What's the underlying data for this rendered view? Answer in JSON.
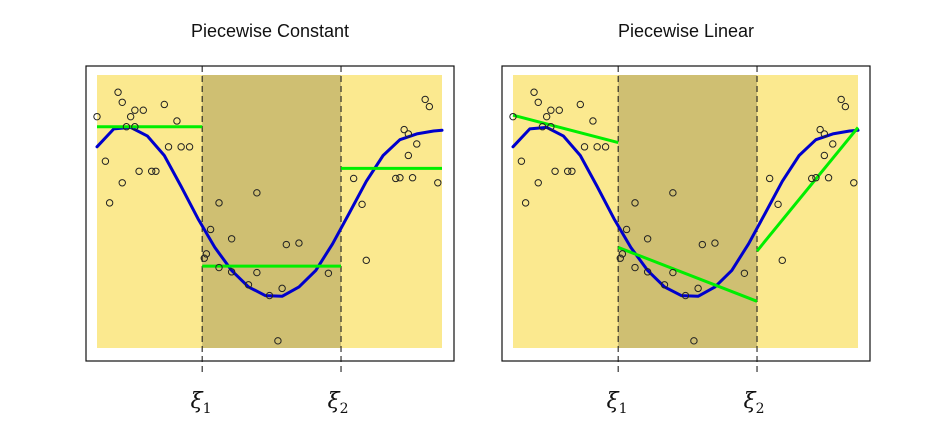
{
  "chart_data": [
    {
      "type": "scatter",
      "title": "Piecewise Constant",
      "knots": [
        {
          "symbol": "ξ",
          "subscript": "1",
          "x": 0.33
        },
        {
          "symbol": "ξ",
          "subscript": "2",
          "x": 0.66
        }
      ],
      "xlim": [
        0.08,
        0.9
      ],
      "ylim": [
        -1.6,
        2.2
      ],
      "colors": {
        "background_light": "#fbe98f",
        "background_dark": "#cfbf72",
        "true_curve": "#0000cc",
        "fit": "#00ee00",
        "points": "#222222",
        "knot_line": "#222222"
      },
      "points": [
        {
          "x": 0.08,
          "y": 1.62
        },
        {
          "x": 0.1,
          "y": 1.0
        },
        {
          "x": 0.11,
          "y": 0.42
        },
        {
          "x": 0.13,
          "y": 1.96
        },
        {
          "x": 0.14,
          "y": 1.82
        },
        {
          "x": 0.14,
          "y": 0.7
        },
        {
          "x": 0.15,
          "y": 1.48
        },
        {
          "x": 0.16,
          "y": 1.62
        },
        {
          "x": 0.17,
          "y": 1.71
        },
        {
          "x": 0.17,
          "y": 1.48
        },
        {
          "x": 0.18,
          "y": 0.86
        },
        {
          "x": 0.19,
          "y": 1.71
        },
        {
          "x": 0.21,
          "y": 0.86
        },
        {
          "x": 0.22,
          "y": 0.86
        },
        {
          "x": 0.24,
          "y": 1.79
        },
        {
          "x": 0.25,
          "y": 1.2
        },
        {
          "x": 0.27,
          "y": 1.56
        },
        {
          "x": 0.28,
          "y": 1.2
        },
        {
          "x": 0.3,
          "y": 1.2
        },
        {
          "x": 0.335,
          "y": -0.35
        },
        {
          "x": 0.34,
          "y": -0.29
        },
        {
          "x": 0.35,
          "y": 0.05
        },
        {
          "x": 0.37,
          "y": 0.42
        },
        {
          "x": 0.37,
          "y": -0.48
        },
        {
          "x": 0.4,
          "y": -0.08
        },
        {
          "x": 0.4,
          "y": -0.54
        },
        {
          "x": 0.44,
          "y": -0.72
        },
        {
          "x": 0.46,
          "y": 0.56
        },
        {
          "x": 0.46,
          "y": -0.55
        },
        {
          "x": 0.49,
          "y": -0.87
        },
        {
          "x": 0.51,
          "y": -1.5
        },
        {
          "x": 0.52,
          "y": -0.77
        },
        {
          "x": 0.53,
          "y": -0.16
        },
        {
          "x": 0.56,
          "y": -0.14
        },
        {
          "x": 0.63,
          "y": -0.56
        },
        {
          "x": 0.69,
          "y": 0.76
        },
        {
          "x": 0.71,
          "y": 0.4
        },
        {
          "x": 0.72,
          "y": -0.38
        },
        {
          "x": 0.79,
          "y": 0.76
        },
        {
          "x": 0.8,
          "y": 0.77
        },
        {
          "x": 0.81,
          "y": 1.44
        },
        {
          "x": 0.82,
          "y": 1.08
        },
        {
          "x": 0.82,
          "y": 1.38
        },
        {
          "x": 0.83,
          "y": 0.77
        },
        {
          "x": 0.84,
          "y": 1.24
        },
        {
          "x": 0.86,
          "y": 1.86
        },
        {
          "x": 0.87,
          "y": 1.76
        },
        {
          "x": 0.89,
          "y": 0.7
        }
      ],
      "true_curve": [
        {
          "x": 0.08,
          "y": 1.2
        },
        {
          "x": 0.12,
          "y": 1.45
        },
        {
          "x": 0.16,
          "y": 1.47
        },
        {
          "x": 0.2,
          "y": 1.35
        },
        {
          "x": 0.24,
          "y": 1.08
        },
        {
          "x": 0.28,
          "y": 0.65
        },
        {
          "x": 0.32,
          "y": 0.2
        },
        {
          "x": 0.36,
          "y": -0.2
        },
        {
          "x": 0.4,
          "y": -0.52
        },
        {
          "x": 0.44,
          "y": -0.75
        },
        {
          "x": 0.48,
          "y": -0.87
        },
        {
          "x": 0.52,
          "y": -0.88
        },
        {
          "x": 0.56,
          "y": -0.75
        },
        {
          "x": 0.6,
          "y": -0.52
        },
        {
          "x": 0.64,
          "y": -0.15
        },
        {
          "x": 0.68,
          "y": 0.28
        },
        {
          "x": 0.72,
          "y": 0.72
        },
        {
          "x": 0.76,
          "y": 1.08
        },
        {
          "x": 0.8,
          "y": 1.3
        },
        {
          "x": 0.84,
          "y": 1.38
        },
        {
          "x": 0.88,
          "y": 1.42
        },
        {
          "x": 0.9,
          "y": 1.43
        }
      ],
      "fit_segments": [
        {
          "x": [
            0.08,
            0.33
          ],
          "y": [
            1.48,
            1.48
          ]
        },
        {
          "x": [
            0.33,
            0.66
          ],
          "y": [
            -0.46,
            -0.46
          ]
        },
        {
          "x": [
            0.66,
            0.9
          ],
          "y": [
            0.9,
            0.9
          ]
        }
      ]
    },
    {
      "type": "scatter",
      "title": "Piecewise Linear",
      "knots": [
        {
          "symbol": "ξ",
          "subscript": "1",
          "x": 0.33
        },
        {
          "symbol": "ξ",
          "subscript": "2",
          "x": 0.66
        }
      ],
      "xlim": [
        0.08,
        0.9
      ],
      "ylim": [
        -1.6,
        2.2
      ],
      "colors": {
        "background_light": "#fbe98f",
        "background_dark": "#cfbf72",
        "true_curve": "#0000cc",
        "fit": "#00ee00",
        "points": "#222222",
        "knot_line": "#222222"
      },
      "points": [
        {
          "x": 0.08,
          "y": 1.62
        },
        {
          "x": 0.1,
          "y": 1.0
        },
        {
          "x": 0.11,
          "y": 0.42
        },
        {
          "x": 0.13,
          "y": 1.96
        },
        {
          "x": 0.14,
          "y": 1.82
        },
        {
          "x": 0.14,
          "y": 0.7
        },
        {
          "x": 0.15,
          "y": 1.48
        },
        {
          "x": 0.16,
          "y": 1.62
        },
        {
          "x": 0.17,
          "y": 1.71
        },
        {
          "x": 0.17,
          "y": 1.48
        },
        {
          "x": 0.18,
          "y": 0.86
        },
        {
          "x": 0.19,
          "y": 1.71
        },
        {
          "x": 0.21,
          "y": 0.86
        },
        {
          "x": 0.22,
          "y": 0.86
        },
        {
          "x": 0.24,
          "y": 1.79
        },
        {
          "x": 0.25,
          "y": 1.2
        },
        {
          "x": 0.27,
          "y": 1.56
        },
        {
          "x": 0.28,
          "y": 1.2
        },
        {
          "x": 0.3,
          "y": 1.2
        },
        {
          "x": 0.335,
          "y": -0.35
        },
        {
          "x": 0.34,
          "y": -0.29
        },
        {
          "x": 0.35,
          "y": 0.05
        },
        {
          "x": 0.37,
          "y": 0.42
        },
        {
          "x": 0.37,
          "y": -0.48
        },
        {
          "x": 0.4,
          "y": -0.08
        },
        {
          "x": 0.4,
          "y": -0.54
        },
        {
          "x": 0.44,
          "y": -0.72
        },
        {
          "x": 0.46,
          "y": 0.56
        },
        {
          "x": 0.46,
          "y": -0.55
        },
        {
          "x": 0.49,
          "y": -0.87
        },
        {
          "x": 0.51,
          "y": -1.5
        },
        {
          "x": 0.52,
          "y": -0.77
        },
        {
          "x": 0.53,
          "y": -0.16
        },
        {
          "x": 0.56,
          "y": -0.14
        },
        {
          "x": 0.63,
          "y": -0.56
        },
        {
          "x": 0.69,
          "y": 0.76
        },
        {
          "x": 0.71,
          "y": 0.4
        },
        {
          "x": 0.72,
          "y": -0.38
        },
        {
          "x": 0.79,
          "y": 0.76
        },
        {
          "x": 0.8,
          "y": 0.77
        },
        {
          "x": 0.81,
          "y": 1.44
        },
        {
          "x": 0.82,
          "y": 1.08
        },
        {
          "x": 0.82,
          "y": 1.38
        },
        {
          "x": 0.83,
          "y": 0.77
        },
        {
          "x": 0.84,
          "y": 1.24
        },
        {
          "x": 0.86,
          "y": 1.86
        },
        {
          "x": 0.87,
          "y": 1.76
        },
        {
          "x": 0.89,
          "y": 0.7
        }
      ],
      "true_curve": [
        {
          "x": 0.08,
          "y": 1.2
        },
        {
          "x": 0.12,
          "y": 1.45
        },
        {
          "x": 0.16,
          "y": 1.47
        },
        {
          "x": 0.2,
          "y": 1.35
        },
        {
          "x": 0.24,
          "y": 1.08
        },
        {
          "x": 0.28,
          "y": 0.65
        },
        {
          "x": 0.32,
          "y": 0.2
        },
        {
          "x": 0.36,
          "y": -0.2
        },
        {
          "x": 0.4,
          "y": -0.52
        },
        {
          "x": 0.44,
          "y": -0.75
        },
        {
          "x": 0.48,
          "y": -0.87
        },
        {
          "x": 0.52,
          "y": -0.88
        },
        {
          "x": 0.56,
          "y": -0.75
        },
        {
          "x": 0.6,
          "y": -0.52
        },
        {
          "x": 0.64,
          "y": -0.15
        },
        {
          "x": 0.68,
          "y": 0.28
        },
        {
          "x": 0.72,
          "y": 0.72
        },
        {
          "x": 0.76,
          "y": 1.08
        },
        {
          "x": 0.8,
          "y": 1.3
        },
        {
          "x": 0.84,
          "y": 1.38
        },
        {
          "x": 0.88,
          "y": 1.42
        },
        {
          "x": 0.9,
          "y": 1.43
        }
      ],
      "fit_segments": [
        {
          "x": [
            0.08,
            0.33
          ],
          "y": [
            1.64,
            1.26
          ]
        },
        {
          "x": [
            0.33,
            0.66
          ],
          "y": [
            -0.2,
            -0.95
          ]
        },
        {
          "x": [
            0.66,
            0.9
          ],
          "y": [
            -0.25,
            1.47
          ]
        }
      ]
    }
  ]
}
